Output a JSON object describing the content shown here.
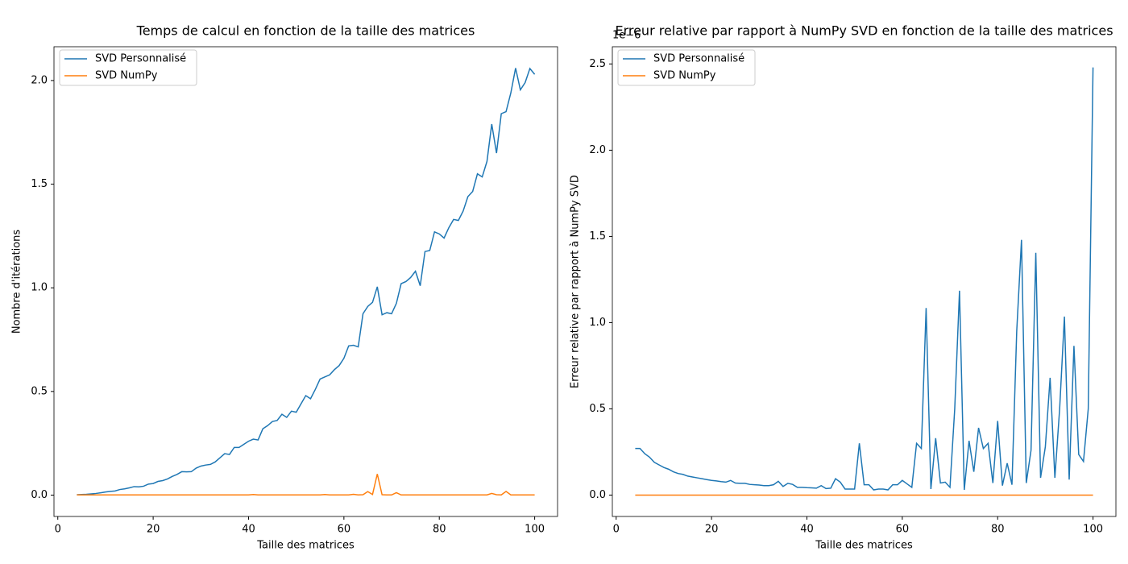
{
  "chart_data": [
    {
      "type": "line",
      "title": "Temps de calcul en fonction de la taille des matrices",
      "xlabel": "Taille des matrices",
      "ylabel": "Nombre d'itérations",
      "xlim": [
        -0.8,
        104.8
      ],
      "xticks": [
        0,
        20,
        40,
        60,
        80,
        100
      ],
      "ylim": [
        -0.103,
        2.163
      ],
      "yticks": [
        {
          "value": 0,
          "label": "0.0"
        },
        0.5,
        {
          "value": 1,
          "label": "1.0"
        },
        1.5,
        {
          "value": 2,
          "label": "2.0"
        }
      ],
      "legend": "upper left",
      "x": [
        4,
        5,
        6,
        7,
        8,
        9,
        10,
        11,
        12,
        13,
        14,
        15,
        16,
        17,
        18,
        19,
        20,
        21,
        22,
        23,
        24,
        25,
        26,
        27,
        28,
        29,
        30,
        31,
        32,
        33,
        34,
        35,
        36,
        37,
        38,
        39,
        40,
        41,
        42,
        43,
        44,
        45,
        46,
        47,
        48,
        49,
        50,
        51,
        52,
        53,
        54,
        55,
        56,
        57,
        58,
        59,
        60,
        61,
        62,
        63,
        64,
        65,
        66,
        67,
        68,
        69,
        70,
        71,
        72,
        73,
        74,
        75,
        76,
        77,
        78,
        79,
        80,
        81,
        82,
        83,
        84,
        85,
        86,
        87,
        88,
        89,
        90,
        91,
        92,
        93,
        94,
        95,
        96,
        97,
        98,
        99,
        100
      ],
      "series": [
        {
          "name": "SVD Personnalisé",
          "color": "#1f77b4",
          "values": [
            0.002,
            0.003,
            0.004,
            0.006,
            0.008,
            0.011,
            0.015,
            0.018,
            0.02,
            0.027,
            0.03,
            0.035,
            0.041,
            0.04,
            0.043,
            0.053,
            0.056,
            0.066,
            0.07,
            0.078,
            0.09,
            0.1,
            0.113,
            0.112,
            0.113,
            0.13,
            0.14,
            0.145,
            0.148,
            0.16,
            0.18,
            0.2,
            0.196,
            0.23,
            0.23,
            0.245,
            0.26,
            0.27,
            0.266,
            0.32,
            0.335,
            0.355,
            0.36,
            0.39,
            0.375,
            0.405,
            0.4,
            0.44,
            0.48,
            0.465,
            0.51,
            0.56,
            0.57,
            0.58,
            0.605,
            0.625,
            0.66,
            0.72,
            0.723,
            0.715,
            0.875,
            0.91,
            0.93,
            1.005,
            0.87,
            0.88,
            0.875,
            0.925,
            1.02,
            1.03,
            1.05,
            1.08,
            1.01,
            1.175,
            1.18,
            1.27,
            1.26,
            1.24,
            1.29,
            1.33,
            1.325,
            1.37,
            1.44,
            1.465,
            1.55,
            1.535,
            1.61,
            1.79,
            1.65,
            1.84,
            1.85,
            1.94,
            2.06,
            1.955,
            1.99,
            2.058,
            2.03
          ]
        },
        {
          "name": "SVD NumPy",
          "color": "#ff7f0e",
          "values": [
            0.001,
            0.001,
            0.001,
            0.001,
            0.001,
            0.001,
            0.001,
            0.001,
            0.001,
            0.001,
            0.001,
            0.001,
            0.001,
            0.001,
            0.001,
            0.001,
            0.001,
            0.001,
            0.001,
            0.001,
            0.001,
            0.001,
            0.001,
            0.001,
            0.001,
            0.001,
            0.001,
            0.001,
            0.001,
            0.001,
            0.001,
            0.001,
            0.001,
            0.001,
            0.001,
            0.001,
            0.001,
            0.003,
            0.001,
            0.001,
            0.001,
            0.001,
            0.001,
            0.001,
            0.001,
            0.001,
            0.001,
            0.001,
            0.001,
            0.001,
            0.001,
            0.001,
            0.003,
            0.001,
            0.001,
            0.001,
            0.001,
            0.001,
            0.004,
            0.001,
            0.002,
            0.017,
            0.003,
            0.102,
            0.002,
            0.001,
            0.001,
            0.012,
            0.001,
            0.001,
            0.001,
            0.001,
            0.001,
            0.001,
            0.001,
            0.001,
            0.001,
            0.001,
            0.001,
            0.001,
            0.001,
            0.001,
            0.001,
            0.001,
            0.001,
            0.001,
            0.001,
            0.008,
            0.002,
            0.001,
            0.018,
            0.001,
            0.001,
            0.001,
            0.001,
            0.001,
            0.001
          ]
        }
      ]
    },
    {
      "type": "line",
      "title": "Erreur relative par rapport à NumPy SVD en fonction de la taille des matrices",
      "xlabel": "Taille des matrices",
      "ylabel": "Erreur relative par rapport à NumPy SVD",
      "y_offset_label": "1e−6",
      "xlim": [
        -0.8,
        104.8
      ],
      "xticks": [
        0,
        20,
        40,
        60,
        80,
        100
      ],
      "ylim": [
        -0.124,
        2.6
      ],
      "yticks": [
        {
          "value": 0,
          "label": "0.0"
        },
        0.5,
        {
          "value": 1,
          "label": "1.0"
        },
        1.5,
        {
          "value": 2,
          "label": "2.0"
        },
        2.5
      ],
      "legend": "upper left",
      "x": [
        4,
        5,
        6,
        7,
        8,
        9,
        10,
        11,
        12,
        13,
        14,
        15,
        16,
        17,
        18,
        19,
        20,
        21,
        22,
        23,
        24,
        25,
        26,
        27,
        28,
        29,
        30,
        31,
        32,
        33,
        34,
        35,
        36,
        37,
        38,
        39,
        40,
        41,
        42,
        43,
        44,
        45,
        46,
        47,
        48,
        49,
        50,
        51,
        52,
        53,
        54,
        55,
        56,
        57,
        58,
        59,
        60,
        61,
        62,
        63,
        64,
        65,
        66,
        67,
        68,
        69,
        70,
        71,
        72,
        73,
        74,
        75,
        76,
        77,
        78,
        79,
        80,
        81,
        82,
        83,
        84,
        85,
        86,
        87,
        88,
        89,
        90,
        91,
        92,
        93,
        94,
        95,
        96,
        97,
        98,
        99,
        100
      ],
      "series": [
        {
          "name": "SVD Personnalisé",
          "color": "#1f77b4",
          "values": [
            0.27,
            0.27,
            0.24,
            0.22,
            0.19,
            0.175,
            0.16,
            0.15,
            0.135,
            0.125,
            0.12,
            0.11,
            0.105,
            0.1,
            0.095,
            0.09,
            0.085,
            0.082,
            0.078,
            0.075,
            0.085,
            0.07,
            0.068,
            0.068,
            0.062,
            0.06,
            0.058,
            0.055,
            0.055,
            0.06,
            0.08,
            0.05,
            0.068,
            0.062,
            0.045,
            0.045,
            0.043,
            0.042,
            0.04,
            0.055,
            0.038,
            0.04,
            0.095,
            0.075,
            0.035,
            0.035,
            0.035,
            0.3,
            0.06,
            0.06,
            0.03,
            0.035,
            0.035,
            0.03,
            0.06,
            0.06,
            0.085,
            0.065,
            0.045,
            0.3,
            0.27,
            1.085,
            0.035,
            0.33,
            0.07,
            0.075,
            0.045,
            0.5,
            1.185,
            0.03,
            0.315,
            0.135,
            0.39,
            0.27,
            0.3,
            0.07,
            0.43,
            0.055,
            0.185,
            0.06,
            0.95,
            1.48,
            0.07,
            0.26,
            1.405,
            0.1,
            0.28,
            0.68,
            0.1,
            0.5,
            1.035,
            0.09,
            0.865,
            0.235,
            0.195,
            0.5,
            2.48
          ]
        },
        {
          "name": "SVD NumPy",
          "color": "#ff7f0e",
          "values": [
            0,
            0,
            0,
            0,
            0,
            0,
            0,
            0,
            0,
            0,
            0,
            0,
            0,
            0,
            0,
            0,
            0,
            0,
            0,
            0,
            0,
            0,
            0,
            0,
            0,
            0,
            0,
            0,
            0,
            0,
            0,
            0,
            0,
            0,
            0,
            0,
            0,
            0,
            0,
            0,
            0,
            0,
            0,
            0,
            0,
            0,
            0,
            0,
            0,
            0,
            0,
            0,
            0,
            0,
            0,
            0,
            0,
            0,
            0,
            0,
            0,
            0,
            0,
            0,
            0,
            0,
            0,
            0,
            0,
            0,
            0,
            0,
            0,
            0,
            0,
            0,
            0,
            0,
            0,
            0,
            0,
            0,
            0,
            0,
            0,
            0,
            0,
            0,
            0,
            0,
            0,
            0,
            0,
            0,
            0,
            0,
            0
          ]
        }
      ]
    }
  ]
}
